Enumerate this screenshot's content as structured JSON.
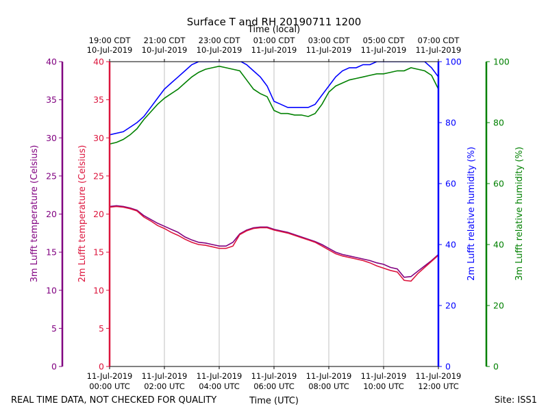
{
  "chart_data": {
    "type": "line",
    "title": "Surface T and RH 20190711 1200",
    "top_axis_label": "Time (local)",
    "xlabel": "Time (UTC)",
    "footer_left": "REAL TIME DATA, NOT CHECKED FOR QUALITY",
    "footer_right": "Site: ISS1",
    "x_ticks_utc": [
      {
        "hour": 0,
        "line1": "11-Jul-2019",
        "line2": "00:00 UTC"
      },
      {
        "hour": 2,
        "line1": "11-Jul-2019",
        "line2": "02:00 UTC"
      },
      {
        "hour": 4,
        "line1": "11-Jul-2019",
        "line2": "04:00 UTC"
      },
      {
        "hour": 6,
        "line1": "11-Jul-2019",
        "line2": "06:00 UTC"
      },
      {
        "hour": 8,
        "line1": "11-Jul-2019",
        "line2": "08:00 UTC"
      },
      {
        "hour": 10,
        "line1": "11-Jul-2019",
        "line2": "10:00 UTC"
      },
      {
        "hour": 12,
        "line1": "11-Jul-2019",
        "line2": "12:00 UTC"
      }
    ],
    "x_ticks_local": [
      {
        "hour": 0,
        "line1": "19:00 CDT",
        "line2": "10-Jul-2019"
      },
      {
        "hour": 2,
        "line1": "21:00 CDT",
        "line2": "10-Jul-2019"
      },
      {
        "hour": 4,
        "line1": "23:00 CDT",
        "line2": "10-Jul-2019"
      },
      {
        "hour": 6,
        "line1": "01:00 CDT",
        "line2": "11-Jul-2019"
      },
      {
        "hour": 8,
        "line1": "03:00 CDT",
        "line2": "11-Jul-2019"
      },
      {
        "hour": 10,
        "line1": "05:00 CDT",
        "line2": "11-Jul-2019"
      },
      {
        "hour": 12,
        "line1": "07:00 CDT",
        "line2": "11-Jul-2019"
      }
    ],
    "xlim": [
      0,
      12
    ],
    "grid": "vertical",
    "axes": [
      {
        "id": "t3m",
        "label": "3m Lufft temperature (Celsius)",
        "color": "#800080",
        "ylim": [
          0,
          40
        ],
        "ticks": [
          0,
          5,
          10,
          15,
          20,
          25,
          30,
          35,
          40
        ],
        "side": "left"
      },
      {
        "id": "t2m",
        "label": "2m Lufft temperature (Celsius)",
        "color": "#dc143c",
        "ylim": [
          0,
          40
        ],
        "ticks": [
          0,
          5,
          10,
          15,
          20,
          25,
          30,
          35,
          40
        ],
        "side": "left"
      },
      {
        "id": "rh2m",
        "label": "2m Lufft relative humidity (%)",
        "color": "#0000ff",
        "ylim": [
          0,
          100
        ],
        "ticks": [
          0,
          20,
          40,
          60,
          80,
          100
        ],
        "side": "right"
      },
      {
        "id": "rh3m",
        "label": "3m Lufft relative humidity (%)",
        "color": "#008000",
        "ylim": [
          0,
          100
        ],
        "ticks": [
          0,
          20,
          40,
          60,
          80,
          100
        ],
        "side": "right"
      }
    ],
    "series": [
      {
        "axis": "rh2m",
        "color": "#0000ff",
        "x": [
          0,
          0.5,
          1,
          1.25,
          1.5,
          1.75,
          2,
          2.25,
          2.5,
          2.75,
          3,
          3.25,
          3.5,
          4,
          4.3,
          4.5,
          4.8,
          5,
          5.25,
          5.5,
          5.75,
          6,
          6.25,
          6.5,
          6.75,
          7,
          7.25,
          7.5,
          7.75,
          8,
          8.25,
          8.5,
          8.75,
          9,
          9.25,
          9.5,
          9.75,
          10,
          10.25,
          10.5,
          10.75,
          11,
          11.25,
          11.5,
          11.75,
          12
        ],
        "values": [
          76,
          77,
          80,
          82,
          85,
          88,
          91,
          93,
          95,
          97,
          99,
          100,
          100,
          100,
          100,
          100,
          100,
          99,
          97,
          95,
          92,
          87,
          86,
          85,
          85,
          85,
          85,
          86,
          89,
          92,
          95,
          97,
          98,
          98,
          99,
          99,
          100,
          100,
          100,
          100,
          100,
          100,
          100,
          100,
          98,
          95
        ]
      },
      {
        "axis": "rh3m",
        "color": "#008000",
        "x": [
          0,
          0.25,
          0.5,
          0.75,
          1,
          1.25,
          1.5,
          1.75,
          2,
          2.25,
          2.5,
          2.75,
          3,
          3.25,
          3.5,
          3.75,
          4,
          4.25,
          4.5,
          4.75,
          5,
          5.25,
          5.5,
          5.75,
          6,
          6.25,
          6.5,
          6.75,
          7,
          7.25,
          7.5,
          7.75,
          8,
          8.25,
          8.5,
          8.75,
          9,
          9.25,
          9.5,
          9.75,
          10,
          10.25,
          10.5,
          10.75,
          11,
          11.25,
          11.5,
          11.75,
          12
        ],
        "values": [
          73,
          73.5,
          74.5,
          76,
          78,
          81,
          83.5,
          86,
          88,
          89.5,
          91,
          93,
          95,
          96.5,
          97.5,
          98,
          98.5,
          98,
          97.5,
          97,
          94,
          91,
          89.5,
          88.5,
          84,
          83,
          83,
          82.5,
          82.5,
          82,
          83,
          86,
          90,
          92,
          93,
          94,
          94.5,
          95,
          95.5,
          96,
          96,
          96.5,
          97,
          97,
          98,
          97.5,
          97,
          95.5,
          91
        ]
      },
      {
        "axis": "t3m",
        "color": "#800080",
        "x": [
          0,
          0.25,
          0.5,
          0.75,
          1,
          1.25,
          1.5,
          1.75,
          2,
          2.25,
          2.5,
          2.75,
          3,
          3.25,
          3.5,
          3.75,
          4,
          4.25,
          4.5,
          4.75,
          5,
          5.25,
          5.5,
          5.75,
          6,
          6.25,
          6.5,
          6.75,
          7,
          7.25,
          7.5,
          7.75,
          8,
          8.25,
          8.5,
          8.75,
          9,
          9.25,
          9.5,
          9.75,
          10,
          10.25,
          10.5,
          10.75,
          11,
          11.25,
          11.5,
          11.75,
          12
        ],
        "values": [
          21,
          21.1,
          21,
          20.8,
          20.5,
          19.8,
          19.3,
          18.8,
          18.4,
          18,
          17.6,
          17,
          16.6,
          16.3,
          16.2,
          16,
          15.8,
          15.8,
          16.3,
          17.4,
          17.9,
          18.2,
          18.3,
          18.3,
          18,
          17.8,
          17.6,
          17.3,
          17,
          16.7,
          16.4,
          16,
          15.5,
          15,
          14.7,
          14.5,
          14.3,
          14.1,
          13.9,
          13.6,
          13.4,
          13,
          12.8,
          11.7,
          11.8,
          12.5,
          13.2,
          13.9,
          14.7
        ]
      },
      {
        "axis": "t2m",
        "color": "#dc143c",
        "x": [
          0,
          0.25,
          0.5,
          0.75,
          1,
          1.25,
          1.5,
          1.75,
          2,
          2.25,
          2.5,
          2.75,
          3,
          3.25,
          3.5,
          3.75,
          4,
          4.25,
          4.5,
          4.75,
          5,
          5.25,
          5.5,
          5.75,
          6,
          6.25,
          6.5,
          6.75,
          7,
          7.25,
          7.5,
          7.75,
          8,
          8.25,
          8.5,
          8.75,
          9,
          9.25,
          9.5,
          9.75,
          10,
          10.25,
          10.5,
          10.75,
          11,
          11.25,
          11.5,
          11.75,
          12
        ],
        "values": [
          20.9,
          21,
          20.9,
          20.7,
          20.4,
          19.6,
          19.1,
          18.5,
          18.1,
          17.6,
          17.2,
          16.7,
          16.3,
          16,
          15.9,
          15.7,
          15.5,
          15.5,
          15.8,
          17.3,
          17.8,
          18.1,
          18.2,
          18.2,
          17.9,
          17.7,
          17.5,
          17.2,
          16.9,
          16.6,
          16.3,
          15.8,
          15.3,
          14.8,
          14.5,
          14.3,
          14.1,
          13.9,
          13.6,
          13.2,
          12.9,
          12.6,
          12.4,
          11.3,
          11.2,
          12.2,
          13,
          13.8,
          14.6
        ]
      }
    ]
  }
}
